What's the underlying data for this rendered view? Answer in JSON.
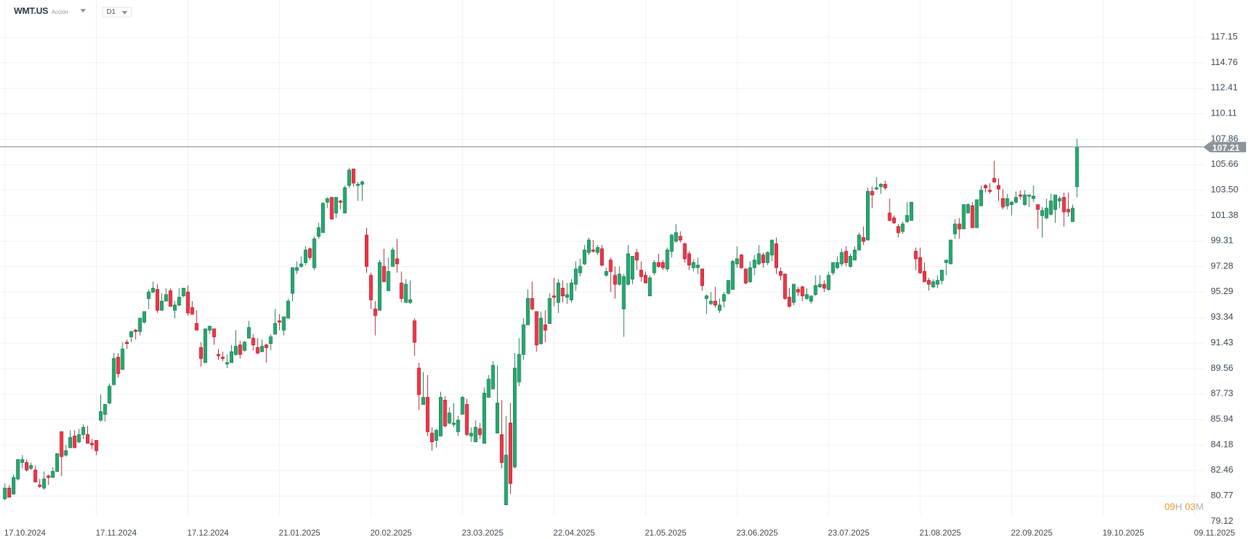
{
  "header": {
    "symbol": "WMT.US",
    "instrument_type": "Acción",
    "timeframe": "D1"
  },
  "countdown": {
    "hours": "09",
    "hours_unit": "H",
    "minutes": "03",
    "minutes_unit": "M"
  },
  "colors": {
    "up": "#22ab70",
    "up_border": "#17774c",
    "down": "#f23645",
    "down_border": "#b0182a",
    "grid": "#f0f0f0",
    "price_line": "#8a9499",
    "countdown": "#f7931e"
  },
  "chart_data": {
    "type": "candlestick",
    "title": "WMT.US",
    "y_scale": "log",
    "grid": true,
    "last_price": "107.21",
    "y_ticks": [
      "117.15",
      "114.76",
      "112.41",
      "110.11",
      "107.86",
      "105.66",
      "103.50",
      "101.38",
      "99.31",
      "97.28",
      "95.29",
      "93.34",
      "91.43",
      "89.56",
      "87.73",
      "85.94",
      "84.18",
      "82.46",
      "80.77",
      "79.12"
    ],
    "x_ticks": [
      "17.10.2024",
      "17.11.2024",
      "17.12.2024",
      "21.01.2025",
      "20.02.2025",
      "23.03.2025",
      "22.04.2025",
      "21.05.2025",
      "23.06.2025",
      "23.07.2025",
      "21.08.2025",
      "22.09.2025",
      "19.10.2025",
      "09.11.2025"
    ],
    "ohlc_fields": [
      "open",
      "high",
      "low",
      "close"
    ],
    "candles": [
      [
        80.6,
        81.6,
        80.5,
        81.3
      ],
      [
        81.3,
        81.5,
        80.7,
        80.7
      ],
      [
        80.9,
        82.2,
        80.9,
        82.0
      ],
      [
        81.9,
        83.2,
        81.8,
        83.2
      ],
      [
        83.0,
        83.5,
        82.6,
        83.2
      ],
      [
        83.0,
        83.2,
        82.4,
        82.5
      ],
      [
        82.6,
        83.0,
        82.5,
        82.8
      ],
      [
        82.5,
        82.8,
        81.7,
        81.7
      ],
      [
        81.5,
        81.9,
        81.3,
        81.4
      ],
      [
        81.3,
        82.4,
        81.2,
        81.9
      ],
      [
        82.1,
        82.2,
        81.5,
        82.0
      ],
      [
        82.0,
        82.7,
        82.0,
        82.4
      ],
      [
        82.4,
        83.6,
        82.4,
        83.6
      ],
      [
        85.1,
        85.1,
        82.1,
        83.4
      ],
      [
        83.5,
        84.2,
        83.4,
        83.8
      ],
      [
        84.0,
        85.2,
        84.0,
        84.7
      ],
      [
        84.8,
        85.2,
        84.0,
        84.0
      ],
      [
        84.4,
        85.3,
        84.3,
        84.9
      ],
      [
        84.9,
        85.6,
        84.6,
        85.4
      ],
      [
        84.9,
        85.5,
        84.3,
        84.3
      ],
      [
        84.3,
        84.6,
        83.9,
        84.2
      ],
      [
        84.5,
        84.5,
        83.5,
        83.8
      ],
      [
        85.9,
        87.7,
        85.8,
        86.5
      ],
      [
        86.3,
        87.0,
        85.8,
        87.0
      ],
      [
        87.1,
        88.5,
        87.0,
        88.3
      ],
      [
        88.4,
        90.7,
        88.4,
        90.3
      ],
      [
        90.4,
        90.7,
        88.9,
        89.2
      ],
      [
        89.5,
        91.5,
        89.5,
        91.0
      ],
      [
        91.5,
        91.7,
        91.0,
        91.4
      ],
      [
        91.9,
        92.3,
        91.5,
        92.3
      ],
      [
        92.4,
        92.5,
        91.7,
        92.3
      ],
      [
        92.3,
        93.3,
        92.0,
        93.3
      ],
      [
        93.0,
        93.8,
        92.9,
        93.8
      ],
      [
        94.8,
        95.5,
        94.0,
        95.3
      ],
      [
        95.3,
        96.1,
        95.2,
        95.6
      ],
      [
        95.5,
        95.9,
        93.7,
        93.9
      ],
      [
        93.9,
        95.2,
        93.9,
        94.6
      ],
      [
        94.6,
        95.6,
        94.6,
        95.1
      ],
      [
        95.4,
        95.6,
        94.2,
        94.2
      ],
      [
        93.9,
        94.6,
        93.3,
        94.3
      ],
      [
        94.3,
        95.6,
        94.2,
        94.9
      ],
      [
        95.0,
        95.6,
        94.9,
        95.6
      ],
      [
        95.3,
        95.8,
        93.5,
        93.7
      ],
      [
        94.1,
        94.6,
        93.6,
        93.6
      ],
      [
        92.9,
        93.9,
        92.4,
        92.4
      ],
      [
        91.1,
        91.5,
        89.7,
        90.3
      ],
      [
        90.0,
        92.5,
        90.0,
        92.5
      ],
      [
        92.4,
        92.7,
        92.1,
        92.7
      ],
      [
        92.5,
        92.5,
        91.3,
        91.9
      ],
      [
        90.6,
        91.0,
        90.2,
        90.5
      ],
      [
        90.4,
        90.8,
        90.1,
        90.3
      ],
      [
        89.9,
        90.6,
        89.6,
        90.0
      ],
      [
        90.0,
        91.3,
        90.0,
        90.8
      ],
      [
        90.6,
        92.4,
        90.5,
        91.2
      ],
      [
        91.3,
        91.6,
        90.3,
        90.6
      ],
      [
        90.9,
        91.6,
        90.8,
        91.5
      ],
      [
        91.8,
        93.1,
        91.8,
        92.6
      ],
      [
        91.8,
        92.1,
        90.9,
        91.3
      ],
      [
        91.1,
        91.8,
        90.6,
        90.7
      ],
      [
        90.8,
        91.7,
        90.8,
        91.2
      ],
      [
        91.3,
        91.4,
        90.0,
        91.1
      ],
      [
        91.4,
        92.1,
        90.9,
        91.9
      ],
      [
        92.1,
        94.0,
        92.1,
        92.9
      ],
      [
        93.1,
        93.6,
        92.4,
        93.0
      ],
      [
        92.4,
        93.4,
        92.0,
        93.4
      ],
      [
        93.3,
        94.8,
        93.3,
        94.6
      ],
      [
        95.2,
        97.2,
        94.6,
        97.2
      ],
      [
        97.0,
        97.7,
        96.7,
        97.2
      ],
      [
        97.3,
        98.1,
        97.2,
        97.5
      ],
      [
        97.6,
        98.9,
        97.4,
        98.6
      ],
      [
        98.7,
        98.8,
        97.8,
        98.0
      ],
      [
        97.2,
        99.7,
        97.0,
        99.5
      ],
      [
        99.7,
        100.8,
        99.5,
        100.4
      ],
      [
        100.0,
        102.5,
        100.0,
        102.4
      ],
      [
        102.5,
        102.9,
        102.0,
        102.8
      ],
      [
        102.9,
        102.9,
        101.1,
        101.1
      ],
      [
        101.6,
        102.9,
        101.2,
        102.9
      ],
      [
        102.6,
        102.7,
        101.9,
        102.5
      ],
      [
        101.6,
        103.9,
        101.6,
        103.7
      ],
      [
        103.9,
        105.4,
        103.7,
        105.2
      ],
      [
        105.3,
        105.3,
        103.8,
        104.1
      ],
      [
        103.9,
        104.2,
        102.6,
        104.0
      ],
      [
        104.0,
        104.3,
        102.6,
        104.2
      ],
      [
        99.8,
        100.4,
        96.8,
        97.3
      ],
      [
        96.6,
        96.8,
        94.0,
        94.7
      ],
      [
        94.0,
        94.6,
        92.0,
        93.5
      ],
      [
        93.9,
        97.8,
        93.9,
        97.6
      ],
      [
        97.3,
        98.7,
        96.1,
        96.1
      ],
      [
        95.4,
        98.0,
        95.4,
        96.9
      ],
      [
        97.3,
        98.8,
        97.3,
        98.6
      ],
      [
        97.9,
        99.5,
        96.8,
        97.5
      ],
      [
        96.0,
        96.9,
        94.5,
        94.8
      ],
      [
        94.5,
        96.3,
        94.5,
        95.9
      ],
      [
        94.5,
        96.2,
        94.4,
        94.7
      ],
      [
        93.1,
        93.3,
        90.5,
        91.5
      ],
      [
        89.6,
        90.0,
        86.6,
        87.7
      ],
      [
        87.0,
        89.3,
        87.0,
        87.5
      ],
      [
        87.5,
        89.1,
        84.8,
        85.1
      ],
      [
        85.0,
        85.4,
        83.8,
        84.4
      ],
      [
        84.5,
        85.3,
        84.0,
        85.2
      ],
      [
        84.8,
        87.9,
        84.8,
        87.5
      ],
      [
        87.3,
        87.6,
        85.4,
        85.5
      ],
      [
        85.7,
        86.8,
        85.6,
        86.4
      ],
      [
        85.6,
        87.1,
        85.4,
        85.7
      ],
      [
        85.1,
        86.2,
        84.8,
        85.9
      ],
      [
        86.3,
        87.6,
        86.3,
        87.5
      ],
      [
        87.0,
        87.4,
        84.8,
        84.9
      ],
      [
        84.8,
        85.4,
        84.4,
        85.0
      ],
      [
        84.4,
        85.9,
        84.4,
        85.4
      ],
      [
        85.3,
        85.7,
        84.6,
        84.9
      ],
      [
        84.3,
        88.2,
        84.3,
        87.8
      ],
      [
        87.5,
        89.1,
        87.5,
        88.8
      ],
      [
        88.1,
        90.1,
        88.1,
        89.8
      ],
      [
        85.0,
        89.8,
        85.0,
        87.1
      ],
      [
        84.9,
        87.3,
        82.6,
        83.0
      ],
      [
        80.2,
        86.2,
        80.2,
        83.5
      ],
      [
        85.7,
        87.1,
        80.9,
        81.6
      ],
      [
        82.7,
        90.7,
        82.6,
        89.6
      ],
      [
        88.6,
        91.8,
        88.3,
        90.6
      ],
      [
        90.6,
        93.3,
        90.2,
        92.8
      ],
      [
        92.8,
        95.5,
        92.8,
        94.8
      ],
      [
        94.8,
        96.1,
        93.9,
        94.0
      ],
      [
        93.8,
        93.8,
        90.8,
        91.3
      ],
      [
        91.4,
        93.8,
        91.3,
        93.3
      ],
      [
        92.8,
        93.9,
        91.5,
        92.4
      ],
      [
        92.9,
        95.2,
        92.9,
        94.8
      ],
      [
        95.0,
        96.4,
        94.2,
        94.9
      ],
      [
        94.5,
        96.3,
        93.7,
        96.0
      ],
      [
        95.6,
        96.2,
        94.5,
        95.0
      ],
      [
        94.9,
        96.0,
        94.4,
        95.1
      ],
      [
        94.7,
        96.3,
        94.5,
        96.0
      ],
      [
        95.9,
        97.7,
        95.4,
        97.1
      ],
      [
        96.8,
        97.9,
        96.5,
        97.3
      ],
      [
        97.5,
        99.0,
        97.4,
        98.6
      ],
      [
        98.4,
        99.6,
        98.2,
        99.4
      ],
      [
        98.6,
        99.4,
        98.4,
        98.5
      ],
      [
        98.4,
        99.0,
        98.2,
        98.8
      ],
      [
        98.7,
        99.0,
        97.3,
        97.4
      ],
      [
        96.6,
        97.2,
        96.5,
        96.9
      ],
      [
        97.8,
        98.0,
        95.3,
        96.9
      ],
      [
        96.6,
        97.3,
        94.8,
        95.9
      ],
      [
        95.9,
        97.3,
        95.8,
        96.7
      ],
      [
        94.0,
        96.7,
        91.9,
        96.5
      ],
      [
        95.9,
        99.0,
        95.8,
        98.3
      ],
      [
        96.3,
        98.1,
        95.9,
        98.1
      ],
      [
        98.4,
        98.7,
        97.0,
        97.8
      ],
      [
        97.0,
        97.7,
        96.1,
        96.5
      ],
      [
        96.6,
        96.9,
        96.0,
        96.0
      ],
      [
        95.0,
        96.6,
        95.0,
        96.4
      ],
      [
        96.8,
        97.8,
        96.6,
        97.6
      ],
      [
        97.6,
        98.3,
        97.2,
        97.3
      ],
      [
        97.6,
        97.8,
        97.0,
        97.2
      ],
      [
        97.1,
        98.8,
        96.9,
        98.6
      ],
      [
        98.5,
        99.9,
        98.0,
        99.8
      ],
      [
        99.3,
        100.7,
        99.2,
        100.0
      ],
      [
        99.7,
        100.1,
        99.2,
        99.4
      ],
      [
        99.1,
        99.2,
        97.6,
        97.9
      ],
      [
        98.3,
        98.5,
        97.0,
        97.4
      ],
      [
        97.2,
        97.9,
        96.9,
        97.6
      ],
      [
        97.2,
        98.0,
        96.7,
        97.4
      ],
      [
        97.1,
        97.1,
        95.4,
        95.8
      ],
      [
        94.8,
        95.1,
        93.6,
        95.0
      ],
      [
        94.4,
        95.3,
        94.3,
        94.6
      ],
      [
        94.6,
        95.7,
        94.1,
        94.3
      ],
      [
        93.9,
        94.8,
        93.7,
        94.3
      ],
      [
        94.6,
        95.3,
        94.1,
        95.1
      ],
      [
        95.2,
        96.2,
        95.1,
        96.2
      ],
      [
        95.5,
        97.8,
        95.5,
        97.7
      ],
      [
        97.5,
        98.9,
        97.2,
        97.9
      ],
      [
        98.2,
        98.3,
        97.1,
        97.2
      ],
      [
        97.1,
        97.1,
        95.9,
        96.0
      ],
      [
        96.1,
        97.7,
        96.0,
        97.2
      ],
      [
        97.2,
        98.2,
        96.6,
        97.8
      ],
      [
        97.5,
        99.0,
        97.4,
        98.3
      ],
      [
        98.2,
        98.4,
        97.2,
        97.6
      ],
      [
        97.6,
        98.5,
        97.4,
        98.4
      ],
      [
        98.2,
        99.4,
        97.7,
        99.4
      ],
      [
        99.1,
        99.6,
        96.7,
        97.2
      ],
      [
        96.9,
        97.2,
        96.2,
        96.6
      ],
      [
        96.7,
        96.7,
        94.7,
        94.8
      ],
      [
        94.9,
        95.6,
        94.1,
        94.2
      ],
      [
        94.5,
        95.9,
        94.3,
        95.9
      ],
      [
        95.5,
        95.7,
        95.0,
        95.3
      ],
      [
        95.7,
        95.8,
        94.6,
        95.0
      ],
      [
        94.8,
        95.6,
        94.7,
        95.1
      ],
      [
        94.6,
        95.0,
        94.4,
        95.0
      ],
      [
        95.1,
        96.6,
        95.0,
        95.8
      ],
      [
        95.7,
        96.6,
        95.6,
        95.9
      ],
      [
        95.9,
        96.2,
        95.3,
        95.6
      ],
      [
        95.5,
        96.9,
        95.4,
        96.6
      ],
      [
        96.8,
        97.6,
        96.6,
        97.6
      ],
      [
        97.2,
        98.1,
        97.1,
        97.6
      ],
      [
        97.5,
        98.7,
        97.3,
        98.4
      ],
      [
        98.5,
        98.9,
        97.3,
        97.6
      ],
      [
        97.3,
        98.3,
        97.2,
        98.1
      ],
      [
        97.8,
        98.9,
        97.8,
        98.6
      ],
      [
        98.6,
        100.0,
        98.6,
        99.8
      ],
      [
        99.6,
        100.5,
        99.0,
        99.3
      ],
      [
        99.4,
        103.7,
        99.4,
        103.4
      ],
      [
        103.4,
        103.8,
        102.0,
        103.1
      ],
      [
        103.6,
        104.6,
        103.5,
        103.7
      ],
      [
        103.8,
        104.1,
        103.2,
        104.0
      ],
      [
        104.0,
        104.3,
        103.5,
        103.7
      ],
      [
        101.6,
        102.8,
        100.9,
        101.0
      ],
      [
        101.2,
        101.4,
        100.7,
        100.8
      ],
      [
        100.5,
        100.7,
        99.6,
        100.0
      ],
      [
        100.1,
        100.9,
        99.9,
        100.7
      ],
      [
        100.9,
        102.5,
        100.8,
        101.4
      ],
      [
        101.0,
        102.5,
        101.0,
        102.5
      ],
      [
        98.5,
        98.8,
        97.0,
        97.9
      ],
      [
        98.0,
        98.8,
        96.7,
        96.8
      ],
      [
        96.9,
        97.6,
        96.1,
        96.1
      ],
      [
        96.2,
        96.4,
        95.4,
        95.9
      ],
      [
        95.7,
        96.3,
        95.6,
        96.1
      ],
      [
        95.9,
        96.6,
        95.6,
        96.2
      ],
      [
        96.2,
        97.0,
        95.9,
        97.0
      ],
      [
        97.6,
        97.8,
        96.6,
        97.8
      ],
      [
        97.5,
        99.4,
        97.5,
        99.4
      ],
      [
        99.9,
        101.1,
        99.5,
        100.7
      ],
      [
        100.7,
        101.2,
        99.5,
        100.3
      ],
      [
        100.3,
        102.3,
        100.3,
        102.3
      ],
      [
        101.6,
        102.4,
        101.6,
        102.3
      ],
      [
        102.2,
        102.5,
        100.4,
        100.4
      ],
      [
        100.4,
        102.7,
        100.4,
        102.7
      ],
      [
        102.2,
        103.9,
        102.2,
        103.5
      ],
      [
        103.9,
        104.0,
        103.3,
        103.7
      ],
      [
        103.5,
        104.1,
        103.2,
        103.4
      ],
      [
        104.5,
        106.0,
        104.1,
        104.2
      ],
      [
        103.9,
        104.5,
        102.6,
        103.6
      ],
      [
        102.8,
        103.6,
        101.9,
        102.1
      ],
      [
        102.2,
        103.2,
        101.9,
        102.8
      ],
      [
        102.3,
        102.6,
        101.4,
        102.5
      ],
      [
        102.5,
        103.4,
        102.4,
        102.9
      ],
      [
        103.1,
        103.5,
        102.7,
        103.0
      ],
      [
        102.3,
        103.5,
        102.2,
        103.1
      ],
      [
        103.0,
        103.1,
        102.1,
        103.1
      ],
      [
        102.8,
        103.9,
        102.5,
        103.0
      ],
      [
        102.3,
        102.3,
        100.3,
        101.9
      ],
      [
        101.4,
        102.1,
        99.6,
        101.8
      ],
      [
        101.2,
        102.8,
        101.1,
        102.0
      ],
      [
        101.5,
        103.2,
        101.4,
        102.6
      ],
      [
        101.9,
        103.1,
        100.8,
        103.1
      ],
      [
        102.6,
        103.0,
        102.0,
        102.8
      ],
      [
        102.9,
        103.3,
        100.5,
        101.7
      ],
      [
        101.9,
        103.3,
        101.3,
        101.7
      ],
      [
        100.9,
        102.3,
        100.9,
        102.0
      ],
      [
        103.8,
        107.9,
        102.9,
        107.21
      ]
    ]
  }
}
